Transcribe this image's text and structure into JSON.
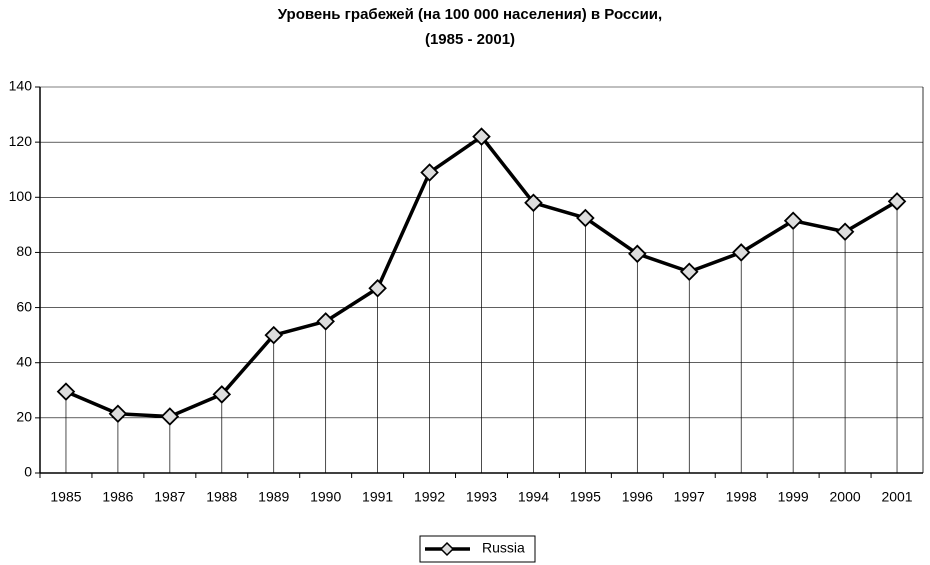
{
  "chart_data": {
    "type": "line",
    "title": "Уровень грабежей (на 100 000 населения) в России,",
    "subtitle": "(1985 - 2001)",
    "categories": [
      "1985",
      "1986",
      "1987",
      "1988",
      "1989",
      "1990",
      "1991",
      "1992",
      "1993",
      "1994",
      "1995",
      "1996",
      "1997",
      "1998",
      "1999",
      "2000",
      "2001"
    ],
    "series": [
      {
        "name": "Russia",
        "color": "#000000",
        "values": [
          29.5,
          21.5,
          20.5,
          28.5,
          50,
          55,
          67,
          109,
          122,
          98,
          92.5,
          79.5,
          73,
          80,
          91.5,
          87.5,
          98.5
        ]
      }
    ],
    "ylim": [
      0,
      140
    ],
    "yticks": [
      0,
      20,
      40,
      60,
      80,
      100,
      120,
      140
    ],
    "grid": true,
    "drop_lines": true,
    "legend": "bottom"
  }
}
